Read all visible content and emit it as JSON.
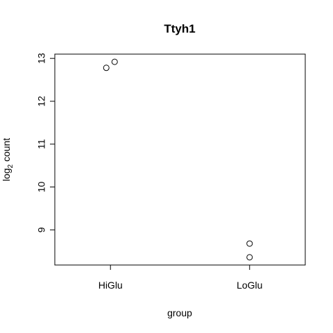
{
  "chart_data": {
    "type": "scatter",
    "title": "Ttyh1",
    "xlabel": "group",
    "ylabel_main": "log",
    "ylabel_sub": "2",
    "ylabel_rest": " count",
    "categories": [
      "HiGlu",
      "LoGlu"
    ],
    "yticks": [
      "9",
      "10",
      "11",
      "12",
      "13"
    ],
    "ylim": [
      8.18,
      13.1
    ],
    "grid": false,
    "series": [
      {
        "points": [
          {
            "group": "HiGlu",
            "jitter": -0.03,
            "y": 12.78
          },
          {
            "group": "HiGlu",
            "jitter": 0.03,
            "y": 12.92
          },
          {
            "group": "LoGlu",
            "jitter": 0.0,
            "y": 8.68
          },
          {
            "group": "LoGlu",
            "jitter": 0.0,
            "y": 8.36
          }
        ]
      }
    ]
  }
}
